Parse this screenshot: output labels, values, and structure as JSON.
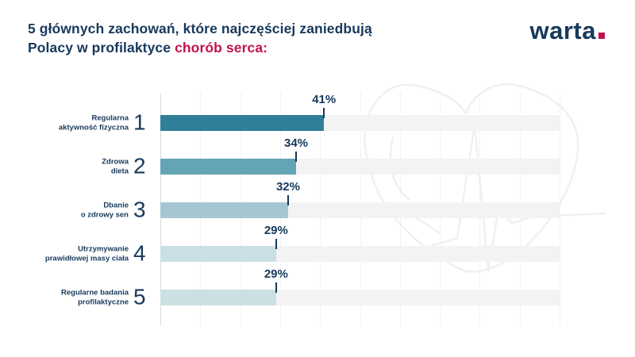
{
  "title": {
    "line1": "5 głównych zachowań, które najczęściej zaniedbują",
    "line2_prefix": "Polacy w profilaktyce ",
    "line2_highlight": "chorób serca:"
  },
  "logo": {
    "text": "warta",
    "dot_color": "#c2114b"
  },
  "colors": {
    "navy": "#17395c",
    "red": "#c2114b",
    "track": "#f3f3f4",
    "gridline": "#e4e7ea",
    "axis_line": "#d7dbdf",
    "watermark": "#f0f0f1"
  },
  "chart_data": {
    "type": "bar",
    "orientation": "horizontal",
    "title": "5 głównych zachowań, które najczęściej zaniedbują Polacy w profilaktyce chorób serca:",
    "categories": [
      "Regularna aktywność fizyczna",
      "Zdrowa dieta",
      "Dbanie o zdrowy sen",
      "Utrzymywanie prawidłowej masy ciała",
      "Regularne badania profilaktyczne"
    ],
    "category_lines": [
      [
        "Regularna",
        "aktywność fizyczna"
      ],
      [
        "Zdrowa",
        "dieta"
      ],
      [
        "Dbanie",
        "o zdrowy sen"
      ],
      [
        "Utrzymywanie",
        "prawidłowej masy ciała"
      ],
      [
        "Regularne badania",
        "profilaktyczne"
      ]
    ],
    "ranks": [
      "1",
      "2",
      "3",
      "4",
      "5"
    ],
    "values": [
      41,
      34,
      32,
      29,
      29
    ],
    "value_labels": [
      "41%",
      "34%",
      "32%",
      "29%",
      "29%"
    ],
    "bar_colors": [
      "#2f7f99",
      "#63a5b5",
      "#a6c7d1",
      "#c9dfe3",
      "#cbe0e3"
    ],
    "xlim": [
      0,
      100
    ],
    "gridline_step_pct": 10,
    "grid": "vertical-dotted",
    "legend": false
  }
}
